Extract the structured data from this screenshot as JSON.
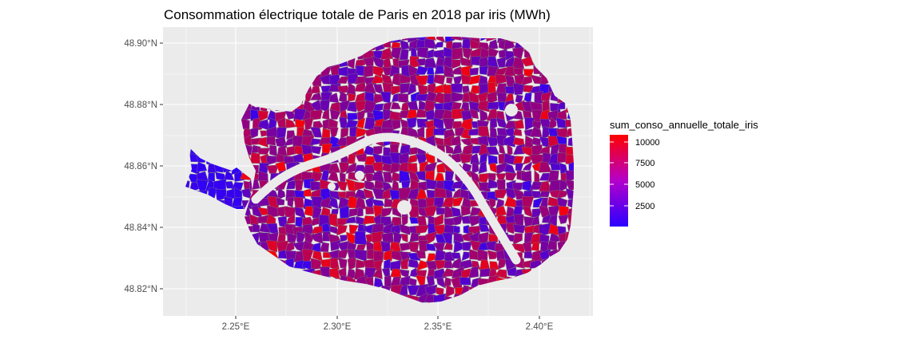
{
  "chart_data": {
    "type": "choropleth-map",
    "title": "Consommation électrique totale de Paris en 2018 par iris (MWh)",
    "xlabel": "",
    "ylabel": "",
    "x_ticks": [
      "2.25°E",
      "2.30°E",
      "2.35°E",
      "2.40°E"
    ],
    "y_ticks": [
      "48.90°N",
      "48.88°N",
      "48.86°N",
      "48.84°N",
      "48.82°N"
    ],
    "x_tick_values": [
      2.25,
      2.3,
      2.35,
      2.4
    ],
    "y_tick_values": [
      48.9,
      48.88,
      48.86,
      48.84,
      48.82
    ],
    "xlim": [
      2.215,
      2.425
    ],
    "ylim": [
      48.811,
      48.906
    ],
    "grid": true,
    "legend": {
      "title": "sum_conso_annuelle_totale_iris",
      "placement": "right",
      "labels": [
        "10000",
        "7500",
        "5000",
        "2500"
      ],
      "values": [
        10000,
        7500,
        5000,
        2500
      ],
      "min": 500,
      "max": 11000,
      "low_color": "#2a00ff",
      "high_color": "#ff0000"
    },
    "colors": {
      "panel_background": "#ebebeb",
      "grid_major": "#ffffff",
      "border": "#7a7a7a"
    }
  }
}
